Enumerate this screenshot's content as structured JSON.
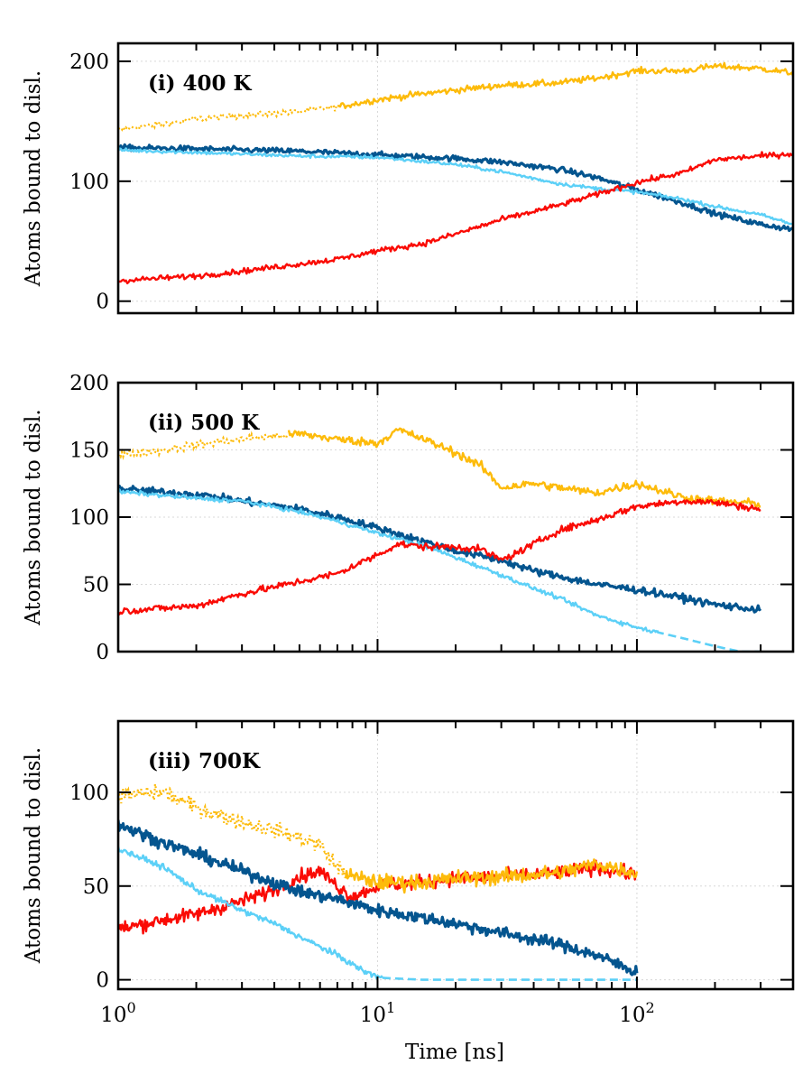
{
  "chart_data": {
    "type": "line",
    "xlabel": "Time [ns]",
    "xscale": "log",
    "xlim": [
      1,
      400
    ],
    "colors": {
      "dark_blue": "#04558f",
      "light_blue": "#5cd0f7",
      "red": "#fa0b05",
      "yellow": "#fdbb0b"
    },
    "panels": [
      {
        "title": "(i) 400 K",
        "ylabel": "Atoms bound to disl.",
        "ylim": [
          -10,
          215
        ],
        "yticks": [
          0,
          100,
          200
        ],
        "series": [
          {
            "color": "yellow",
            "style": "dotted-then-solid",
            "solid_from": 7,
            "noise": 2.5,
            "points": [
              [
                1,
                143
              ],
              [
                1.5,
                148
              ],
              [
                2,
                152
              ],
              [
                3,
                155
              ],
              [
                5,
                158
              ],
              [
                7,
                162
              ],
              [
                10,
                168
              ],
              [
                15,
                173
              ],
              [
                20,
                176
              ],
              [
                30,
                180
              ],
              [
                50,
                182
              ],
              [
                70,
                186
              ],
              [
                100,
                192
              ],
              [
                150,
                192
              ],
              [
                200,
                196
              ],
              [
                300,
                194
              ],
              [
                400,
                190
              ]
            ]
          },
          {
            "color": "dark_blue",
            "style": "solid",
            "noise": 2.2,
            "points": [
              [
                1,
                128
              ],
              [
                2,
                127
              ],
              [
                5,
                125
              ],
              [
                10,
                122
              ],
              [
                20,
                119
              ],
              [
                30,
                116
              ],
              [
                50,
                110
              ],
              [
                70,
                103
              ],
              [
                100,
                93
              ],
              [
                150,
                82
              ],
              [
                200,
                73
              ],
              [
                300,
                64
              ],
              [
                400,
                60
              ]
            ]
          },
          {
            "color": "light_blue",
            "style": "solid",
            "noise": 1.4,
            "points": [
              [
                1,
                126
              ],
              [
                2,
                124
              ],
              [
                5,
                121
              ],
              [
                10,
                120
              ],
              [
                20,
                114
              ],
              [
                30,
                108
              ],
              [
                50,
                98
              ],
              [
                70,
                94
              ],
              [
                100,
                91
              ],
              [
                150,
                85
              ],
              [
                200,
                79
              ],
              [
                300,
                72
              ],
              [
                400,
                64
              ]
            ]
          },
          {
            "color": "red",
            "style": "solid",
            "noise": 2.2,
            "points": [
              [
                1,
                17
              ],
              [
                2,
                21
              ],
              [
                3,
                25
              ],
              [
                5,
                31
              ],
              [
                7,
                35
              ],
              [
                10,
                42
              ],
              [
                15,
                48
              ],
              [
                20,
                56
              ],
              [
                30,
                68
              ],
              [
                50,
                80
              ],
              [
                70,
                89
              ],
              [
                100,
                99
              ],
              [
                150,
                107
              ],
              [
                200,
                118
              ],
              [
                300,
                121
              ],
              [
                400,
                123
              ]
            ]
          }
        ]
      },
      {
        "title": "(ii) 500 K",
        "ylabel": "Atoms bound to disl.",
        "ylim": [
          0,
          200
        ],
        "yticks": [
          0,
          50,
          100,
          150,
          200
        ],
        "series": [
          {
            "color": "yellow",
            "style": "dotted-then-solid",
            "solid_from": 4.5,
            "noise": 3,
            "points": [
              [
                1,
                146
              ],
              [
                1.5,
                150
              ],
              [
                2,
                154
              ],
              [
                3,
                158
              ],
              [
                5,
                162
              ],
              [
                7,
                158
              ],
              [
                10,
                155
              ],
              [
                12,
                165
              ],
              [
                15,
                158
              ],
              [
                20,
                148
              ],
              [
                25,
                138
              ],
              [
                30,
                122
              ],
              [
                40,
                125
              ],
              [
                50,
                122
              ],
              [
                70,
                118
              ],
              [
                100,
                125
              ],
              [
                150,
                115
              ],
              [
                200,
                112
              ],
              [
                300,
                110
              ]
            ]
          },
          {
            "color": "dark_blue",
            "style": "solid",
            "noise": 2.5,
            "points": [
              [
                1,
                121
              ],
              [
                2,
                117
              ],
              [
                3,
                112
              ],
              [
                5,
                106
              ],
              [
                7,
                100
              ],
              [
                10,
                92
              ],
              [
                15,
                82
              ],
              [
                20,
                75
              ],
              [
                30,
                68
              ],
              [
                40,
                60
              ],
              [
                50,
                56
              ],
              [
                70,
                50
              ],
              [
                100,
                46
              ],
              [
                150,
                40
              ],
              [
                200,
                35
              ],
              [
                300,
                31
              ]
            ]
          },
          {
            "color": "light_blue",
            "style": "solid",
            "noise": 1.5,
            "dashed_from": 120,
            "points": [
              [
                1,
                119
              ],
              [
                2,
                114
              ],
              [
                3,
                112
              ],
              [
                5,
                104
              ],
              [
                7,
                97
              ],
              [
                10,
                88
              ],
              [
                15,
                79
              ],
              [
                20,
                70
              ],
              [
                30,
                57
              ],
              [
                40,
                47
              ],
              [
                50,
                40
              ],
              [
                70,
                27
              ],
              [
                100,
                18
              ],
              [
                150,
                10
              ],
              [
                200,
                4
              ],
              [
                250,
                0
              ],
              [
                300,
                0
              ]
            ]
          },
          {
            "color": "red",
            "style": "solid",
            "noise": 2.5,
            "points": [
              [
                1,
                30
              ],
              [
                2,
                34
              ],
              [
                3,
                43
              ],
              [
                5,
                52
              ],
              [
                7,
                58
              ],
              [
                10,
                72
              ],
              [
                12,
                80
              ],
              [
                15,
                78
              ],
              [
                20,
                78
              ],
              [
                25,
                76
              ],
              [
                30,
                68
              ],
              [
                35,
                74
              ],
              [
                50,
                90
              ],
              [
                70,
                98
              ],
              [
                100,
                108
              ],
              [
                150,
                112
              ],
              [
                200,
                111
              ],
              [
                300,
                106
              ]
            ]
          }
        ]
      },
      {
        "title": "(iii) 700K",
        "ylabel": "Atoms bound to disl.",
        "ylim": [
          -5,
          138
        ],
        "yticks": [
          0,
          50,
          100
        ],
        "series": [
          {
            "color": "red",
            "style": "solid",
            "noise": 3.5,
            "points": [
              [
                1,
                27
              ],
              [
                1.5,
                32
              ],
              [
                2,
                35
              ],
              [
                3,
                42
              ],
              [
                4,
                48
              ],
              [
                5,
                55
              ],
              [
                6,
                58
              ],
              [
                7,
                50
              ],
              [
                8,
                44
              ],
              [
                10,
                50
              ],
              [
                15,
                52
              ],
              [
                20,
                54
              ],
              [
                30,
                55
              ],
              [
                50,
                57
              ],
              [
                70,
                60
              ],
              [
                100,
                56
              ]
            ]
          },
          {
            "color": "yellow",
            "style": "dotted-then-solid",
            "solid_from": 7.5,
            "noise": 4,
            "points": [
              [
                1,
                98
              ],
              [
                1.5,
                100
              ],
              [
                2,
                92
              ],
              [
                3,
                84
              ],
              [
                4,
                80
              ],
              [
                5,
                76
              ],
              [
                6,
                72
              ],
              [
                7,
                60
              ],
              [
                8,
                55
              ],
              [
                10,
                52
              ],
              [
                15,
                52
              ],
              [
                20,
                54
              ],
              [
                30,
                55
              ],
              [
                50,
                57
              ],
              [
                70,
                62
              ],
              [
                100,
                57
              ]
            ]
          },
          {
            "color": "dark_blue",
            "style": "solid",
            "noise": 3,
            "points": [
              [
                1,
                83
              ],
              [
                1.5,
                73
              ],
              [
                2,
                67
              ],
              [
                3,
                58
              ],
              [
                5,
                47
              ],
              [
                7,
                43
              ],
              [
                10,
                37
              ],
              [
                15,
                33
              ],
              [
                20,
                30
              ],
              [
                30,
                25
              ],
              [
                50,
                19
              ],
              [
                70,
                13
              ],
              [
                100,
                4
              ]
            ]
          },
          {
            "color": "light_blue",
            "style": "solid",
            "noise": 1.5,
            "dashed_from": 10.5,
            "points": [
              [
                1,
                70
              ],
              [
                1.5,
                60
              ],
              [
                2,
                48
              ],
              [
                3,
                37
              ],
              [
                4,
                30
              ],
              [
                5,
                23
              ],
              [
                7,
                13
              ],
              [
                9,
                4
              ],
              [
                10.5,
                1
              ],
              [
                15,
                0
              ],
              [
                30,
                0
              ],
              [
                60,
                0
              ],
              [
                100,
                0
              ]
            ]
          }
        ]
      }
    ]
  }
}
